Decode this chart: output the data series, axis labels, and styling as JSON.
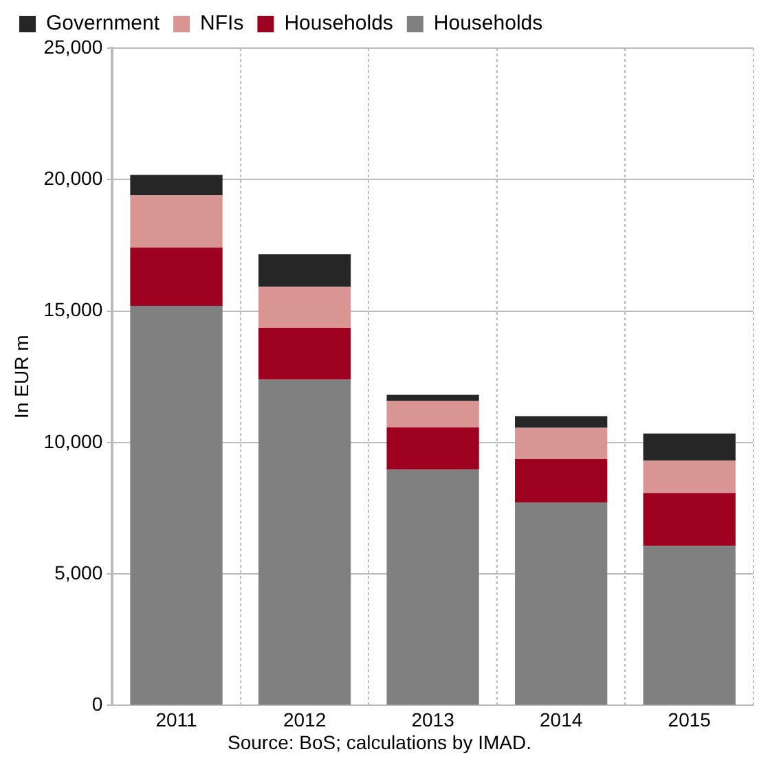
{
  "chart_data": {
    "type": "bar",
    "stacked": true,
    "categories": [
      "2011",
      "2012",
      "2013",
      "2014",
      "2015"
    ],
    "series": [
      {
        "name": "Households",
        "color": "#808080",
        "values": [
          15200,
          12390,
          8970,
          7720,
          6070
        ]
      },
      {
        "name": "Households",
        "color": "#9e0020",
        "values": [
          2210,
          1970,
          1610,
          1650,
          2010
        ]
      },
      {
        "name": "NFIs",
        "color": "#d99594",
        "values": [
          1990,
          1560,
          1000,
          1190,
          1230
        ]
      },
      {
        "name": "Government",
        "color": "#262626",
        "values": [
          780,
          1240,
          230,
          440,
          1030
        ]
      }
    ],
    "ylabel": "In EUR m",
    "ylim": [
      0,
      25000
    ],
    "yticks": [
      0,
      {
        "value": 5000,
        "label": "5,000"
      },
      {
        "value": 10000,
        "label": "10,000"
      },
      {
        "value": 15000,
        "label": "15,000"
      },
      {
        "value": 20000,
        "label": "20,000"
      },
      {
        "value": 25000,
        "label": "25,000"
      }
    ],
    "grid": true,
    "legend": "top",
    "annotations": [
      "Source: BoS; calculations by IMAD."
    ]
  }
}
